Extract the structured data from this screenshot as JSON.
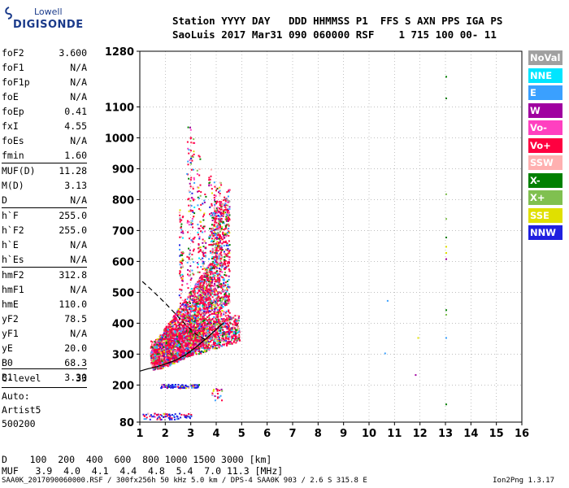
{
  "logo": {
    "top": "Lowell",
    "bottom": "DIGISONDE"
  },
  "header": {
    "line1": "Station YYYY DAY   DDD HHMMSS P1  FFS S AXN PPS IGA PS",
    "line2": "SaoLuis 2017 Mar31 090 060000 RSF    1 715 100 00- 11"
  },
  "params": [
    {
      "label": "foF2",
      "value": "3.600"
    },
    {
      "label": "foF1",
      "value": "N/A"
    },
    {
      "label": "foF1p",
      "value": "N/A"
    },
    {
      "label": "foE",
      "value": "N/A"
    },
    {
      "label": "foEp",
      "value": "0.41"
    },
    {
      "label": "fxI",
      "value": "4.55"
    },
    {
      "label": "foEs",
      "value": "N/A"
    },
    {
      "label": "fmin",
      "value": "1.60"
    },
    {
      "label": "MUF(D)",
      "value": "11.28"
    },
    {
      "label": "M(D)",
      "value": "3.13"
    },
    {
      "label": "D",
      "value": "N/A"
    },
    {
      "label": "h`F",
      "value": "255.0"
    },
    {
      "label": "h`F2",
      "value": "255.0"
    },
    {
      "label": "h`E",
      "value": "N/A"
    },
    {
      "label": "h`Es",
      "value": "N/A"
    },
    {
      "label": "hmF2",
      "value": "312.8"
    },
    {
      "label": "hmF1",
      "value": "N/A"
    },
    {
      "label": "hmE",
      "value": "110.0"
    },
    {
      "label": "yF2",
      "value": "78.5"
    },
    {
      "label": "yF1",
      "value": "N/A"
    },
    {
      "label": "yE",
      "value": "20.0"
    },
    {
      "label": "B0",
      "value": "68.3"
    },
    {
      "label": "B1",
      "value": "3.30"
    },
    {
      "label": "C-level",
      "value": "33"
    }
  ],
  "auto": {
    "line1": "Auto:",
    "line2": "Artist5",
    "line3": "500200"
  },
  "muf_table": {
    "d_line": "D    100  200  400  600  800 1000 1500 3000 [km]",
    "muf_line": "MUF   3.9  4.0  4.1  4.4  4.8  5.4  7.0 11.3 [MHz]"
  },
  "footer": {
    "text": "SAA0K_2017090060000.RSF / 300fx256h 50 kHz 5.0 km / DPS-4 SAA0K 903 / 2.6 S 315.8 E",
    "version": "Ion2Png 1.3.17"
  },
  "legend": [
    {
      "label": "NoVal",
      "color": "#a0a0a0"
    },
    {
      "label": "NNE",
      "color": "#00e5ff"
    },
    {
      "label": "E",
      "color": "#3aa0ff"
    },
    {
      "label": "W",
      "color": "#a000a0"
    },
    {
      "label": "Vo-",
      "color": "#ff40c0"
    },
    {
      "label": "Vo+",
      "color": "#ff0040"
    },
    {
      "label": "SSW",
      "color": "#ffb0b0"
    },
    {
      "label": "X-",
      "color": "#008000"
    },
    {
      "label": "X+",
      "color": "#80c050"
    },
    {
      "label": "SSE",
      "color": "#e0e000"
    },
    {
      "label": "NNW",
      "color": "#2020e0"
    }
  ],
  "chart_data": {
    "type": "scatter",
    "xlim": [
      1,
      16
    ],
    "ylim": [
      80,
      1280
    ],
    "x_ticks": [
      "1",
      "2",
      "3",
      "4",
      "5",
      "6",
      "7",
      "8",
      "9",
      "10",
      "11",
      "12",
      "13",
      "14",
      "15",
      "16"
    ],
    "y_ticks": [
      {
        "value": 80,
        "label": "80"
      },
      {
        "value": 200,
        "label": "200"
      },
      {
        "value": 300,
        "label": "300"
      },
      {
        "value": 400,
        "label": "400"
      },
      {
        "value": 500,
        "label": "500"
      },
      {
        "value": 600,
        "label": "600"
      },
      {
        "value": 700,
        "label": "700"
      },
      {
        "value": 800,
        "label": "800"
      },
      {
        "value": 900,
        "label": "900"
      },
      {
        "value": 1000,
        "label": "1000"
      },
      {
        "value": 1100,
        "label": "1100"
      },
      {
        "value": 1280,
        "label": "1280"
      }
    ],
    "profile_curve": {
      "x": [
        1.0,
        1.3,
        1.6,
        2.0,
        2.4,
        2.8,
        3.2,
        3.6,
        4.0,
        4.3
      ],
      "y": [
        245,
        252,
        258,
        268,
        280,
        298,
        322,
        350,
        380,
        402
      ]
    },
    "dashed_curve": {
      "x": [
        1.1,
        1.5,
        2.0,
        2.4,
        2.8,
        3.2,
        3.6
      ],
      "y": [
        535,
        505,
        465,
        430,
        395,
        365,
        345
      ]
    }
  }
}
